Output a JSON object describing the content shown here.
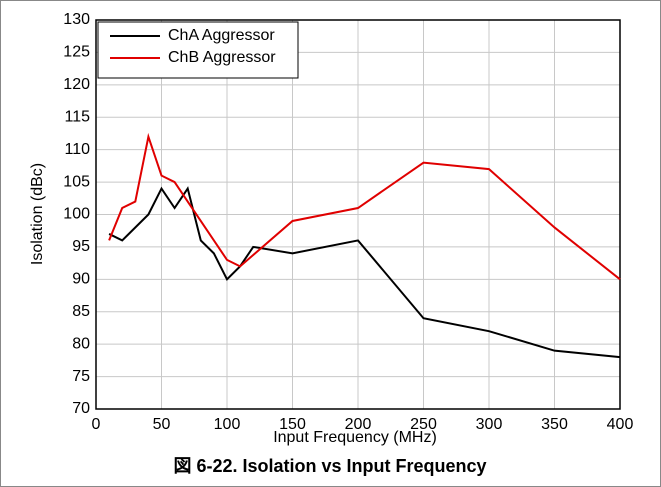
{
  "chart_data": {
    "type": "line",
    "caption": "図 6-22. Isolation vs Input Frequency",
    "xlabel": "Input Frequency (MHz)",
    "ylabel": "Isolation (dBc)",
    "xlim": [
      0,
      400
    ],
    "xticks": [
      0,
      50,
      100,
      150,
      200,
      250,
      300,
      350,
      400
    ],
    "ylim": [
      70,
      130
    ],
    "yticks": [
      70,
      75,
      80,
      85,
      90,
      95,
      100,
      105,
      110,
      115,
      120,
      125,
      130
    ],
    "grid": true,
    "legend": "upper left",
    "series": [
      {
        "name": "ChA Aggressor",
        "color": "#000000",
        "x": [
          10,
          20,
          40,
          50,
          60,
          70,
          80,
          90,
          100,
          110,
          120,
          150,
          200,
          250,
          300,
          350,
          400
        ],
        "values": [
          97,
          96,
          100,
          104,
          101,
          104,
          96,
          94,
          90,
          92,
          95,
          94,
          96,
          84,
          82,
          79,
          78
        ]
      },
      {
        "name": "ChB Aggressor",
        "color": "#e00000",
        "x": [
          10,
          20,
          30,
          40,
          50,
          60,
          70,
          100,
          110,
          150,
          200,
          250,
          300,
          350,
          400
        ],
        "values": [
          96,
          101,
          102,
          112,
          106,
          105,
          102,
          93,
          92,
          99,
          101,
          108,
          107,
          98,
          90
        ]
      }
    ]
  }
}
